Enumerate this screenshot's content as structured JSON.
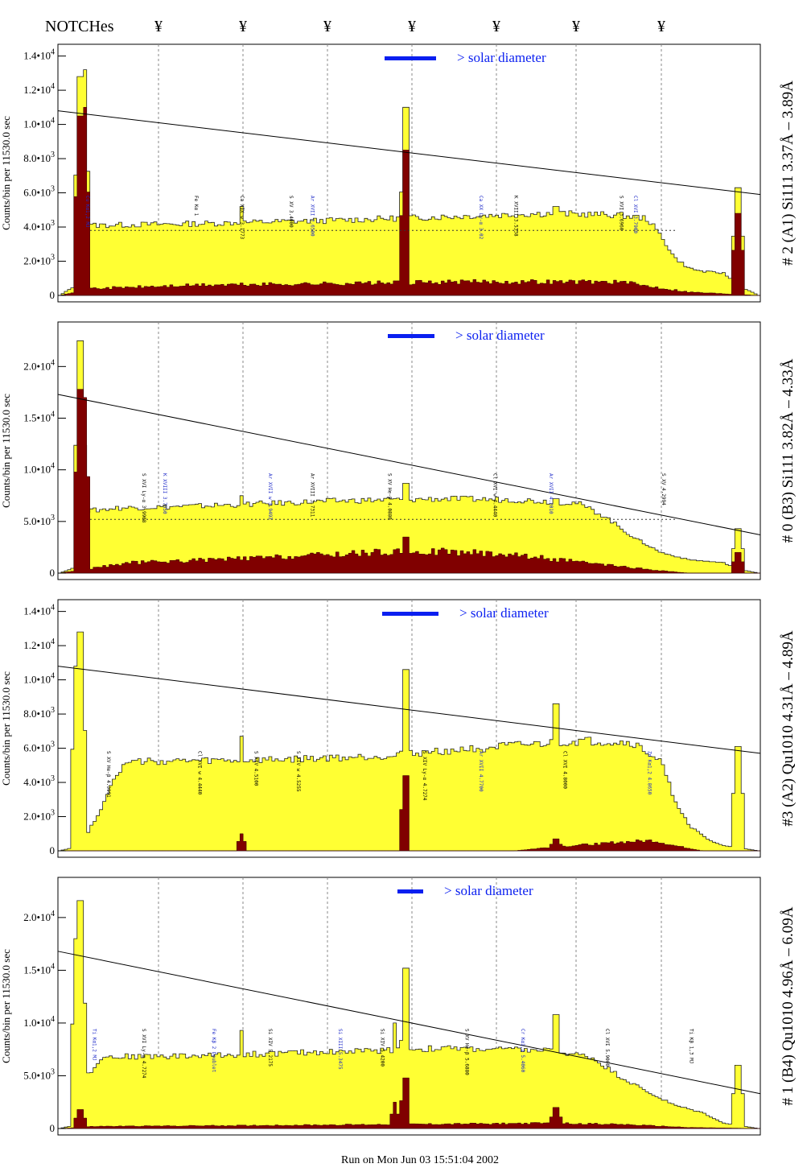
{
  "header": {
    "notches_label": "NOTCHes",
    "notch_symbol": "¥",
    "notch_count": 7
  },
  "footer": {
    "run_text": "Run on Mon Jun 03 15:51:04 2002"
  },
  "colors": {
    "total": "#ffff33",
    "filtered": "#800000",
    "bar": "#0a1ff0",
    "annot_blue": "#1e2ac8",
    "annot_black": "#000000"
  },
  "chart_data": [
    {
      "type": "area",
      "right_label": "# 2 (A1) Si111  3.37Å – 3.89Å",
      "ylabel": "Counts/bin per  11530.0 sec",
      "solar_label": "> solar diameter",
      "ylim": [
        0,
        14500
      ],
      "yticks": [
        {
          "label": "0",
          "value": 0,
          "exp": ""
        },
        {
          "label": "2.0•10",
          "value": 2000,
          "exp": "3"
        },
        {
          "label": "4.0•10",
          "value": 4000,
          "exp": "3"
        },
        {
          "label": "6.0•10",
          "value": 6000,
          "exp": "3"
        },
        {
          "label": "8.0•10",
          "value": 8000,
          "exp": "3"
        },
        {
          "label": "1.0•10",
          "value": 10000,
          "exp": "4"
        },
        {
          "label": "1.2•10",
          "value": 12000,
          "exp": "4"
        },
        {
          "label": "1.4•10",
          "value": 14000,
          "exp": "4"
        }
      ],
      "line": [
        10800,
        5900
      ],
      "total_profile": [
        {
          "x": 0.0,
          "y": 0
        },
        {
          "x": 0.02,
          "y": 500
        },
        {
          "x": 0.03,
          "y": 4000
        },
        {
          "x": 0.05,
          "y": 4100
        },
        {
          "x": 0.2,
          "y": 4200
        },
        {
          "x": 0.4,
          "y": 4400
        },
        {
          "x": 0.55,
          "y": 4600
        },
        {
          "x": 0.7,
          "y": 4800
        },
        {
          "x": 0.8,
          "y": 4700
        },
        {
          "x": 0.84,
          "y": 4500
        },
        {
          "x": 0.86,
          "y": 3500
        },
        {
          "x": 0.88,
          "y": 2200
        },
        {
          "x": 0.9,
          "y": 1600
        },
        {
          "x": 0.92,
          "y": 1400
        },
        {
          "x": 0.95,
          "y": 1300
        },
        {
          "x": 0.97,
          "y": 600
        },
        {
          "x": 1.0,
          "y": 0
        }
      ],
      "total_spikes": [
        {
          "x": 0.03,
          "y": 12800
        },
        {
          "x": 0.035,
          "y": 13200
        },
        {
          "x": 0.26,
          "y": 5200
        },
        {
          "x": 0.495,
          "y": 11000
        },
        {
          "x": 0.71,
          "y": 5200
        },
        {
          "x": 0.97,
          "y": 6300
        }
      ],
      "filtered_profile": [
        {
          "x": 0.0,
          "y": 0
        },
        {
          "x": 0.04,
          "y": 400
        },
        {
          "x": 0.2,
          "y": 600
        },
        {
          "x": 0.4,
          "y": 700
        },
        {
          "x": 0.6,
          "y": 800
        },
        {
          "x": 0.8,
          "y": 800
        },
        {
          "x": 0.85,
          "y": 500
        },
        {
          "x": 0.9,
          "y": 200
        },
        {
          "x": 1.0,
          "y": 0
        }
      ],
      "filtered_spikes": [
        {
          "x": 0.03,
          "y": 10500
        },
        {
          "x": 0.035,
          "y": 11000
        },
        {
          "x": 0.495,
          "y": 8500
        },
        {
          "x": 0.97,
          "y": 4800
        }
      ],
      "dotted_baseline": 3800,
      "annotations": [
        {
          "x": 0.04,
          "text": "Cu Kα1,2 MJ",
          "color": "#1e2ac8"
        },
        {
          "x": 0.195,
          "text": "Fe Kα 1",
          "color": "#000000"
        },
        {
          "x": 0.26,
          "text": "Ca XIX w 3.1773",
          "color": "#000000"
        },
        {
          "x": 0.33,
          "text": "S XV 3.4000",
          "color": "#000000"
        },
        {
          "x": 0.36,
          "text": "Ar XVII 3.6500",
          "color": "#1e2ac8"
        },
        {
          "x": 0.6,
          "text": "Ca XX Ly-α 3.02",
          "color": "#1e2ac8"
        },
        {
          "x": 0.65,
          "text": "K XVIII 3.5338",
          "color": "#000000"
        },
        {
          "x": 0.8,
          "text": "S XVI 3.6960",
          "color": "#000000"
        },
        {
          "x": 0.82,
          "text": "Cl XVI 3.7900",
          "color": "#1e2ac8"
        }
      ]
    },
    {
      "type": "area",
      "right_label": "# 0 (B3) Si111  3.82Å – 4.33Å",
      "ylabel": "Counts/bin per  11530.0 sec",
      "solar_label": "> solar diameter",
      "ylim": [
        0,
        24000
      ],
      "yticks": [
        {
          "label": "0",
          "value": 0,
          "exp": ""
        },
        {
          "label": "5.0•10",
          "value": 5000,
          "exp": "3"
        },
        {
          "label": "1.0•10",
          "value": 10000,
          "exp": "4"
        },
        {
          "label": "1.5•10",
          "value": 15000,
          "exp": "4"
        },
        {
          "label": "2.0•10",
          "value": 20000,
          "exp": "4"
        }
      ],
      "line": [
        17300,
        3700
      ],
      "total_profile": [
        {
          "x": 0.0,
          "y": 0
        },
        {
          "x": 0.02,
          "y": 500
        },
        {
          "x": 0.04,
          "y": 6000
        },
        {
          "x": 0.08,
          "y": 6300
        },
        {
          "x": 0.2,
          "y": 6500
        },
        {
          "x": 0.4,
          "y": 7000
        },
        {
          "x": 0.55,
          "y": 7200
        },
        {
          "x": 0.65,
          "y": 7100
        },
        {
          "x": 0.74,
          "y": 6800
        },
        {
          "x": 0.78,
          "y": 5500
        },
        {
          "x": 0.82,
          "y": 3500
        },
        {
          "x": 0.86,
          "y": 2000
        },
        {
          "x": 0.9,
          "y": 1300
        },
        {
          "x": 0.95,
          "y": 1000
        },
        {
          "x": 0.97,
          "y": 400
        },
        {
          "x": 1.0,
          "y": 0
        }
      ],
      "total_spikes": [
        {
          "x": 0.03,
          "y": 22500
        },
        {
          "x": 0.26,
          "y": 7500
        },
        {
          "x": 0.495,
          "y": 8700
        },
        {
          "x": 0.71,
          "y": 7200
        },
        {
          "x": 0.97,
          "y": 4300
        }
      ],
      "filtered_profile": [
        {
          "x": 0.0,
          "y": 0
        },
        {
          "x": 0.05,
          "y": 500
        },
        {
          "x": 0.1,
          "y": 1000
        },
        {
          "x": 0.3,
          "y": 1500
        },
        {
          "x": 0.45,
          "y": 2000
        },
        {
          "x": 0.55,
          "y": 2100
        },
        {
          "x": 0.65,
          "y": 1800
        },
        {
          "x": 0.75,
          "y": 1000
        },
        {
          "x": 0.85,
          "y": 300
        },
        {
          "x": 0.9,
          "y": 0
        },
        {
          "x": 1.0,
          "y": 0
        }
      ],
      "filtered_spikes": [
        {
          "x": 0.03,
          "y": 17800
        },
        {
          "x": 0.035,
          "y": 17000
        },
        {
          "x": 0.495,
          "y": 3500
        },
        {
          "x": 0.97,
          "y": 2000
        }
      ],
      "dotted_baseline": 5200,
      "annotations": [
        {
          "x": 0.12,
          "text": "S XVI Ly-α 3.9908",
          "color": "#000000"
        },
        {
          "x": 0.15,
          "text": "K XVIII 3.7050",
          "color": "#1e2ac8"
        },
        {
          "x": 0.3,
          "text": "Ar XVII w 3.9493",
          "color": "#1e2ac8"
        },
        {
          "x": 0.36,
          "text": "Ar XVIII 3.7311",
          "color": "#000000"
        },
        {
          "x": 0.47,
          "text": "S XV He-β 4.0880",
          "color": "#000000"
        },
        {
          "x": 0.62,
          "text": "Cl XVI w 4.4440",
          "color": "#000000"
        },
        {
          "x": 0.7,
          "text": "Ar XVII 4.2010",
          "color": "#1e2ac8"
        },
        {
          "x": 0.86,
          "text": "S XV 4.2994",
          "color": "#000000"
        }
      ]
    },
    {
      "type": "area",
      "right_label": "#3 (A2) Qu1010  4.31Å – 4.89Å",
      "ylabel": "Counts/bin per  11530.0 sec",
      "solar_label": "> solar diameter",
      "ylim": [
        0,
        14500
      ],
      "yticks": [
        {
          "label": "0",
          "value": 0,
          "exp": ""
        },
        {
          "label": "2.0•10",
          "value": 2000,
          "exp": "3"
        },
        {
          "label": "4.0•10",
          "value": 4000,
          "exp": "3"
        },
        {
          "label": "6.0•10",
          "value": 6000,
          "exp": "3"
        },
        {
          "label": "8.0•10",
          "value": 8000,
          "exp": "3"
        },
        {
          "label": "1.0•10",
          "value": 10000,
          "exp": "4"
        },
        {
          "label": "1.2•10",
          "value": 12000,
          "exp": "4"
        },
        {
          "label": "1.4•10",
          "value": 14000,
          "exp": "4"
        }
      ],
      "line": [
        10800,
        5700
      ],
      "total_profile": [
        {
          "x": 0.0,
          "y": 0
        },
        {
          "x": 0.03,
          "y": 300
        },
        {
          "x": 0.06,
          "y": 2500
        },
        {
          "x": 0.08,
          "y": 4500
        },
        {
          "x": 0.1,
          "y": 5200
        },
        {
          "x": 0.3,
          "y": 5300
        },
        {
          "x": 0.45,
          "y": 5500
        },
        {
          "x": 0.6,
          "y": 6000
        },
        {
          "x": 0.75,
          "y": 6400
        },
        {
          "x": 0.82,
          "y": 6300
        },
        {
          "x": 0.86,
          "y": 5200
        },
        {
          "x": 0.88,
          "y": 3000
        },
        {
          "x": 0.9,
          "y": 1500
        },
        {
          "x": 0.93,
          "y": 600
        },
        {
          "x": 0.95,
          "y": 300
        },
        {
          "x": 1.0,
          "y": 0
        }
      ],
      "total_spikes": [
        {
          "x": 0.03,
          "y": 12800
        },
        {
          "x": 0.025,
          "y": 10800
        },
        {
          "x": 0.26,
          "y": 6700
        },
        {
          "x": 0.495,
          "y": 10600
        },
        {
          "x": 0.71,
          "y": 8600
        },
        {
          "x": 0.97,
          "y": 6100
        }
      ],
      "filtered_profile": [
        {
          "x": 0.0,
          "y": 0
        },
        {
          "x": 0.65,
          "y": 0
        },
        {
          "x": 0.7,
          "y": 200
        },
        {
          "x": 0.8,
          "y": 500
        },
        {
          "x": 0.85,
          "y": 600
        },
        {
          "x": 0.88,
          "y": 300
        },
        {
          "x": 0.92,
          "y": 0
        },
        {
          "x": 1.0,
          "y": 0
        }
      ],
      "filtered_spikes": [
        {
          "x": 0.26,
          "y": 1000
        },
        {
          "x": 0.495,
          "y": 4400
        },
        {
          "x": 0.71,
          "y": 700
        }
      ],
      "dotted_baseline": null,
      "annotations": [
        {
          "x": 0.07,
          "text": "S XV He-β 4.3991",
          "color": "#000000"
        },
        {
          "x": 0.2,
          "text": "Cl XVI w 4.4440",
          "color": "#000000"
        },
        {
          "x": 0.28,
          "text": "S XIV 4.5100",
          "color": "#000000"
        },
        {
          "x": 0.34,
          "text": "S XIV w 4.5255",
          "color": "#000000"
        },
        {
          "x": 0.52,
          "text": "S XIV Ly-α 4.7274",
          "color": "#000000"
        },
        {
          "x": 0.6,
          "text": "Ar XVII 4.7700",
          "color": "#1e2ac8"
        },
        {
          "x": 0.72,
          "text": "Cl XVI 4.8000",
          "color": "#000000"
        },
        {
          "x": 0.84,
          "text": "Zn Kα1,2 4.8650",
          "color": "#1e2ac8"
        }
      ]
    },
    {
      "type": "area",
      "right_label": "# 1 (B4) Qu1010 4.96Å – 6.09Å",
      "ylabel": "Counts/bin per  11530.0 sec",
      "solar_label": "> solar diameter",
      "ylim": [
        0,
        23500
      ],
      "yticks": [
        {
          "label": "0",
          "value": 0,
          "exp": ""
        },
        {
          "label": "5.0•10",
          "value": 5000,
          "exp": "3"
        },
        {
          "label": "1.0•10",
          "value": 10000,
          "exp": "4"
        },
        {
          "label": "1.5•10",
          "value": 15000,
          "exp": "4"
        },
        {
          "label": "2.0•10",
          "value": 20000,
          "exp": "4"
        }
      ],
      "line": [
        16800,
        3300
      ],
      "total_profile": [
        {
          "x": 0.0,
          "y": 0
        },
        {
          "x": 0.02,
          "y": 300
        },
        {
          "x": 0.04,
          "y": 5000
        },
        {
          "x": 0.06,
          "y": 6800
        },
        {
          "x": 0.2,
          "y": 6900
        },
        {
          "x": 0.4,
          "y": 7300
        },
        {
          "x": 0.55,
          "y": 7600
        },
        {
          "x": 0.7,
          "y": 7400
        },
        {
          "x": 0.76,
          "y": 6800
        },
        {
          "x": 0.8,
          "y": 5000
        },
        {
          "x": 0.84,
          "y": 3500
        },
        {
          "x": 0.88,
          "y": 2200
        },
        {
          "x": 0.92,
          "y": 1500
        },
        {
          "x": 0.95,
          "y": 500
        },
        {
          "x": 1.0,
          "y": 0
        }
      ],
      "total_spikes": [
        {
          "x": 0.03,
          "y": 21600
        },
        {
          "x": 0.025,
          "y": 18000
        },
        {
          "x": 0.26,
          "y": 9300
        },
        {
          "x": 0.495,
          "y": 15200
        },
        {
          "x": 0.48,
          "y": 10000
        },
        {
          "x": 0.71,
          "y": 10800
        },
        {
          "x": 0.97,
          "y": 6000
        }
      ],
      "filtered_profile": [
        {
          "x": 0.0,
          "y": 0
        },
        {
          "x": 0.05,
          "y": 200
        },
        {
          "x": 0.3,
          "y": 300
        },
        {
          "x": 0.5,
          "y": 400
        },
        {
          "x": 0.7,
          "y": 500
        },
        {
          "x": 0.8,
          "y": 400
        },
        {
          "x": 0.9,
          "y": 100
        },
        {
          "x": 1.0,
          "y": 0
        }
      ],
      "filtered_spikes": [
        {
          "x": 0.03,
          "y": 1800
        },
        {
          "x": 0.495,
          "y": 4800
        },
        {
          "x": 0.48,
          "y": 2500
        },
        {
          "x": 0.71,
          "y": 2000
        }
      ],
      "dotted_baseline": null,
      "annotations": [
        {
          "x": 0.05,
          "text": "Ti Kα1,2 MJ",
          "color": "#1e2ac8"
        },
        {
          "x": 0.12,
          "text": "S XVI Ly-α 4.7274",
          "color": "#000000"
        },
        {
          "x": 0.22,
          "text": "Fe Kβ 2 Doublet",
          "color": "#1e2ac8"
        },
        {
          "x": 0.3,
          "text": "Si XIV 5.2175",
          "color": "#000000"
        },
        {
          "x": 0.4,
          "text": "Si XIII 5.3475",
          "color": "#1e2ac8"
        },
        {
          "x": 0.46,
          "text": "Si XIV 5.4200",
          "color": "#000000"
        },
        {
          "x": 0.58,
          "text": "S XV He-β 5.6880",
          "color": "#000000"
        },
        {
          "x": 0.66,
          "text": "Cr Kα1,2 5.4060",
          "color": "#1e2ac8"
        },
        {
          "x": 0.78,
          "text": "Cl XVI 5.9000",
          "color": "#000000"
        },
        {
          "x": 0.9,
          "text": "Ti Kβ 1,3 MJ",
          "color": "#000000"
        }
      ]
    }
  ]
}
